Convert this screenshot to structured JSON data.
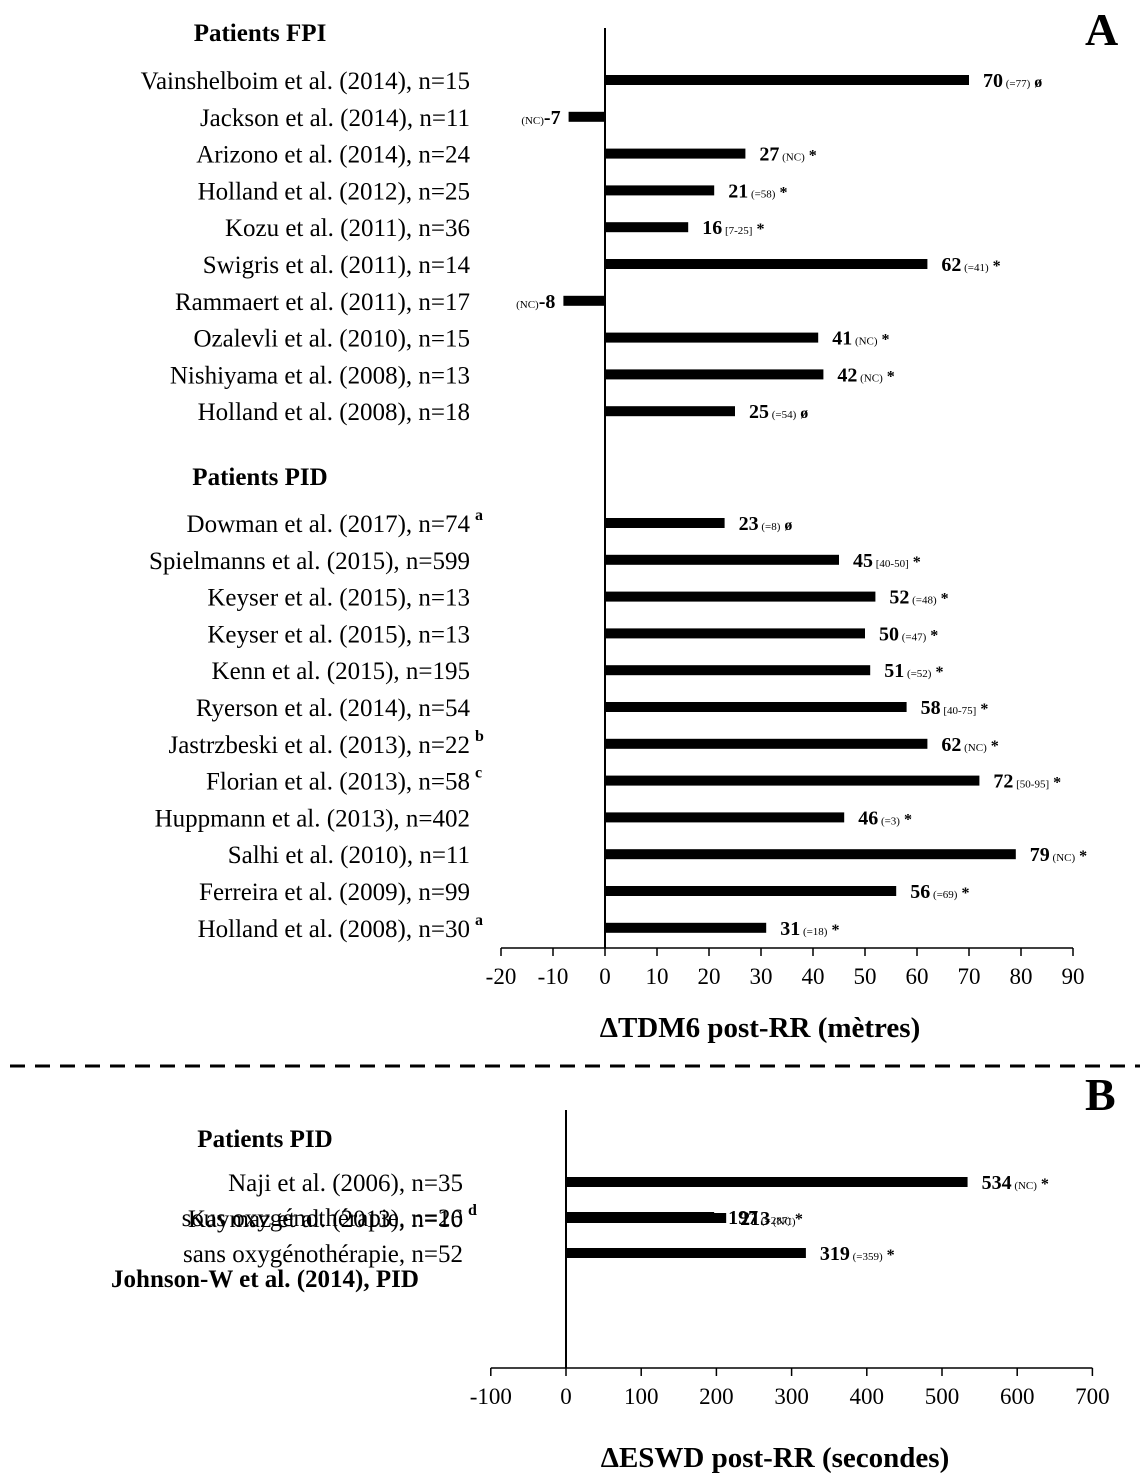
{
  "chart_data": [
    {
      "type": "bar",
      "orientation": "horizontal",
      "panel_label": "A",
      "xlabel": "ΔTDM6 post-RR (mètres)",
      "xlim": [
        -20,
        90
      ],
      "xticks": [
        "-20",
        "-10",
        "0",
        "10",
        "20",
        "30",
        "40",
        "50",
        "60",
        "70",
        "80",
        "90"
      ],
      "groups": [
        {
          "title": "Patients FPI",
          "rows": [
            {
              "label": "Vainshelboim et al. (2014), n=15",
              "sup": "",
              "value": 70,
              "display": "70",
              "note": "(=77)",
              "mark": "ø"
            },
            {
              "label": "Jackson et al. (2014), n=11",
              "sup": "",
              "value": -7,
              "display": "-7",
              "note": "(NC)",
              "mark": ""
            },
            {
              "label": "Arizono et al. (2014), n=24",
              "sup": "",
              "value": 27,
              "display": "27",
              "note": "(NC)",
              "mark": "*"
            },
            {
              "label": "Holland et al. (2012), n=25",
              "sup": "",
              "value": 21,
              "display": "21",
              "note": "(=58)",
              "mark": "*"
            },
            {
              "label": "Kozu et al. (2011), n=36",
              "sup": "",
              "value": 16,
              "display": "16",
              "note": "[7-25]",
              "mark": "*"
            },
            {
              "label": "Swigris et al. (2011), n=14",
              "sup": "",
              "value": 62,
              "display": "62",
              "note": "(=41)",
              "mark": "*"
            },
            {
              "label": "Rammaert et al. (2011), n=17",
              "sup": "",
              "value": -8,
              "display": "-8",
              "note": "(NC)",
              "mark": ""
            },
            {
              "label": "Ozalevli et al. (2010), n=15",
              "sup": "",
              "value": 41,
              "display": "41",
              "note": "(NC)",
              "mark": "*"
            },
            {
              "label": "Nishiyama et al. (2008), n=13",
              "sup": "",
              "value": 42,
              "display": "42",
              "note": "(NC)",
              "mark": "*"
            },
            {
              "label": "Holland et al. (2008), n=18",
              "sup": "",
              "value": 25,
              "display": "25",
              "note": "(=54)",
              "mark": "ø"
            }
          ]
        },
        {
          "title": "Patients PID",
          "rows": [
            {
              "label": "Dowman et al. (2017), n=74",
              "sup": "a",
              "value": 23,
              "display": "23",
              "note": "(=8)",
              "mark": "ø"
            },
            {
              "label": "Spielmanns et al. (2015), n=599",
              "sup": "",
              "value": 45,
              "display": "45",
              "note": "[40-50]",
              "mark": "*"
            },
            {
              "label": "Keyser et al. (2015), n=13",
              "sup": "",
              "value": 52,
              "display": "52",
              "note": "(=48)",
              "mark": "*"
            },
            {
              "label": "Keyser et al. (2015), n=13",
              "sup": "",
              "value": 50,
              "display": "50",
              "note": "(=47)",
              "mark": "*"
            },
            {
              "label": "Kenn et al. (2015), n=195",
              "sup": "",
              "value": 51,
              "display": "51",
              "note": "(=52)",
              "mark": "*"
            },
            {
              "label": "Ryerson et al. (2014), n=54",
              "sup": "",
              "value": 58,
              "display": "58",
              "note": "[40-75]",
              "mark": "*"
            },
            {
              "label": "Jastrzbeski et al. (2013), n=22",
              "sup": "b",
              "value": 62,
              "display": "62",
              "note": "(NC)",
              "mark": "*"
            },
            {
              "label": "Florian et al. (2013), n=58",
              "sup": "c",
              "value": 72,
              "display": "72",
              "note": "[50-95]",
              "mark": "*"
            },
            {
              "label": "Huppmann et al. (2013), n=402",
              "sup": "",
              "value": 46,
              "display": "46",
              "note": "(=3)",
              "mark": "*"
            },
            {
              "label": "Salhi et al. (2010), n=11",
              "sup": "",
              "value": 79,
              "display": "79",
              "note": "(NC)",
              "mark": "*"
            },
            {
              "label": "Ferreira et al. (2009), n=99",
              "sup": "",
              "value": 56,
              "display": "56",
              "note": "(=69)",
              "mark": "*"
            },
            {
              "label": "Holland et al. (2008), n=30",
              "sup": "a",
              "value": 31,
              "display": "31",
              "note": "(=18)",
              "mark": "*"
            }
          ]
        }
      ],
      "grid": false,
      "legend": "none"
    },
    {
      "type": "bar",
      "orientation": "horizontal",
      "panel_label": "B",
      "xlabel": "ΔESWD post-RR (secondes)",
      "xlim": [
        -100,
        700
      ],
      "xticks": [
        "-100",
        "0",
        "100",
        "200",
        "300",
        "400",
        "500",
        "600",
        "700"
      ],
      "groups": [
        {
          "title": "Patients PID",
          "rows": [
            {
              "label": "Naji et al. (2006), n=35",
              "sup": "",
              "value": 534,
              "display": "534",
              "note": "(NC)",
              "mark": "*"
            },
            {
              "label": "Kaymaz et al. (2013), n=10",
              "sup": "d",
              "value": 213,
              "display": "213",
              "note": "(NC)",
              "mark": ""
            }
          ]
        },
        {
          "title": "Johnson-W et al. (2014), PID",
          "rows": [
            {
              "label": "sous oxygénothérapie, n=26",
              "sup": "",
              "value": 197,
              "display": "197",
              "note": "(=287)",
              "mark": "*"
            },
            {
              "label": "sans oxygénothérapie, n=52",
              "sup": "",
              "value": 319,
              "display": "319",
              "note": "(=359)",
              "mark": "*"
            }
          ]
        }
      ],
      "grid": false,
      "legend": "none"
    }
  ]
}
